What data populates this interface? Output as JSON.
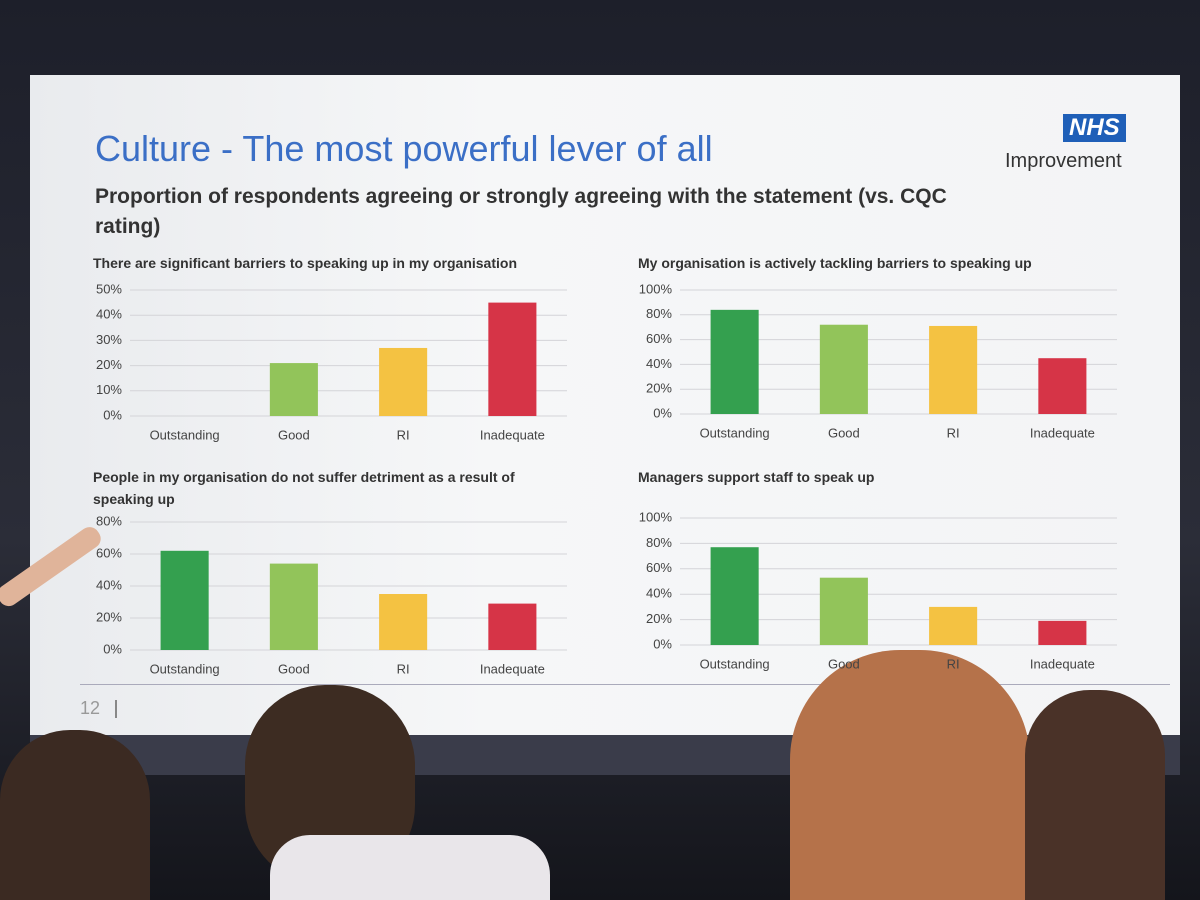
{
  "slide": {
    "title": "Culture - The most powerful lever of all",
    "subtitle": "Proportion of respondents agreeing or strongly agreeing with the statement (vs. CQC rating)",
    "logo": {
      "mark": "NHS",
      "name": "Improvement"
    },
    "page_number": "12"
  },
  "chart_data": [
    {
      "type": "bar",
      "title": "There are significant barriers to speaking up in my organisation",
      "categories": [
        "Outstanding",
        "Good",
        "RI",
        "Inadequate"
      ],
      "values": [
        0,
        21,
        27,
        45
      ],
      "colors": [
        "#34a04f",
        "#92c45a",
        "#f4c242",
        "#d63447"
      ],
      "ylim": [
        0,
        50
      ],
      "yticks": [
        {
          "value": 0,
          "label": "0%"
        },
        {
          "value": 10,
          "label": "10%"
        },
        {
          "value": 20,
          "label": "20%"
        },
        {
          "value": 30,
          "label": "30%"
        },
        {
          "value": 40,
          "label": "40%"
        },
        {
          "value": 50,
          "label": "50%"
        }
      ],
      "grid": true
    },
    {
      "type": "bar",
      "title": "My organisation is actively tackling barriers to speaking up",
      "categories": [
        "Outstanding",
        "Good",
        "RI",
        "Inadequate"
      ],
      "values": [
        84,
        72,
        71,
        45
      ],
      "colors": [
        "#34a04f",
        "#92c45a",
        "#f4c242",
        "#d63447"
      ],
      "ylim": [
        0,
        100
      ],
      "yticks": [
        {
          "value": 0,
          "label": "0%"
        },
        {
          "value": 20,
          "label": "20%"
        },
        {
          "value": 40,
          "label": "40%"
        },
        {
          "value": 60,
          "label": "60%"
        },
        {
          "value": 80,
          "label": "80%"
        },
        {
          "value": 100,
          "label": "100%"
        }
      ],
      "grid": true
    },
    {
      "type": "bar",
      "title": "People in my organisation do not suffer detriment as a result of speaking up",
      "categories": [
        "Outstanding",
        "Good",
        "RI",
        "Inadequate"
      ],
      "values": [
        62,
        54,
        35,
        29
      ],
      "colors": [
        "#34a04f",
        "#92c45a",
        "#f4c242",
        "#d63447"
      ],
      "ylim": [
        0,
        80
      ],
      "yticks": [
        {
          "value": 0,
          "label": "0%"
        },
        {
          "value": 20,
          "label": "20%"
        },
        {
          "value": 40,
          "label": "40%"
        },
        {
          "value": 60,
          "label": "60%"
        },
        {
          "value": 80,
          "label": "80%"
        }
      ],
      "grid": true
    },
    {
      "type": "bar",
      "title": "Managers support staff to speak up",
      "categories": [
        "Outstanding",
        "Good",
        "RI",
        "Inadequate"
      ],
      "values": [
        77,
        53,
        30,
        19
      ],
      "colors": [
        "#34a04f",
        "#92c45a",
        "#f4c242",
        "#d63447"
      ],
      "ylim": [
        0,
        100
      ],
      "yticks": [
        {
          "value": 0,
          "label": "0%"
        },
        {
          "value": 20,
          "label": "20%"
        },
        {
          "value": 40,
          "label": "40%"
        },
        {
          "value": 60,
          "label": "60%"
        },
        {
          "value": 80,
          "label": "80%"
        },
        {
          "value": 100,
          "label": "100%"
        }
      ],
      "grid": true
    }
  ]
}
